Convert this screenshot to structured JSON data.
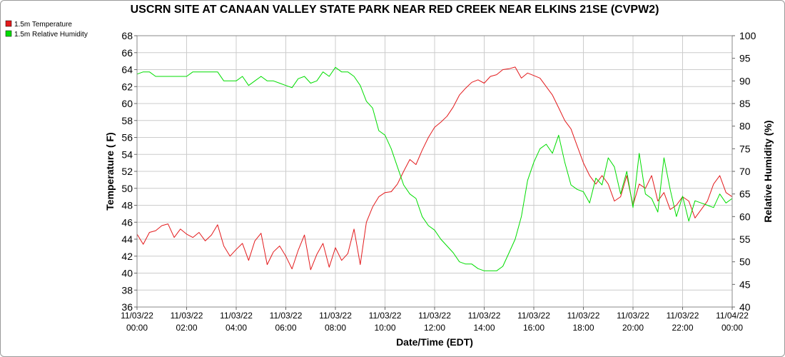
{
  "chart_data": {
    "type": "line",
    "title": "USCRN SITE AT CANAAN VALLEY STATE PARK NEAR RED CREEK NEAR ELKINS 21SE (CVPW2)",
    "xlabel": "Date/Time (EDT)",
    "ylabel_left": "Temperature ( F)",
    "ylabel_right": "Relative Humidity (%)",
    "xlim_hours": [
      0,
      24
    ],
    "ylim_left": [
      36,
      68
    ],
    "ylim_right": [
      40,
      100
    ],
    "yticks_left": [
      "36",
      "38",
      "40",
      "42",
      "44",
      "46",
      "48",
      "50",
      "52",
      "54",
      "56",
      "58",
      "60",
      "62",
      "64",
      "66",
      "68"
    ],
    "yticks_right": [
      "40",
      "45",
      "50",
      "55",
      "60",
      "65",
      "70",
      "75",
      "80",
      "85",
      "90",
      "95",
      "100"
    ],
    "xtick_labels": [
      {
        "date": "11/03/22",
        "time": "00:00"
      },
      {
        "date": "11/03/22",
        "time": "02:00"
      },
      {
        "date": "11/03/22",
        "time": "04:00"
      },
      {
        "date": "11/03/22",
        "time": "06:00"
      },
      {
        "date": "11/03/22",
        "time": "08:00"
      },
      {
        "date": "11/03/22",
        "time": "10:00"
      },
      {
        "date": "11/03/22",
        "time": "12:00"
      },
      {
        "date": "11/03/22",
        "time": "14:00"
      },
      {
        "date": "11/03/22",
        "time": "16:00"
      },
      {
        "date": "11/03/22",
        "time": "18:00"
      },
      {
        "date": "11/03/22",
        "time": "20:00"
      },
      {
        "date": "11/03/22",
        "time": "22:00"
      },
      {
        "date": "11/04/22",
        "time": "00:00"
      }
    ],
    "grid": true,
    "legend_position": "top-left",
    "series": [
      {
        "name": "1.5m Temperature",
        "axis": "left",
        "color": "#e31a1c",
        "x": [
          0,
          0.25,
          0.5,
          0.75,
          1,
          1.25,
          1.5,
          1.75,
          2,
          2.25,
          2.5,
          2.75,
          3,
          3.25,
          3.5,
          3.75,
          4,
          4.25,
          4.5,
          4.75,
          5,
          5.25,
          5.5,
          5.75,
          6,
          6.25,
          6.5,
          6.75,
          7,
          7.25,
          7.5,
          7.75,
          8,
          8.25,
          8.5,
          8.75,
          9,
          9.25,
          9.5,
          9.75,
          10,
          10.25,
          10.5,
          10.75,
          11,
          11.25,
          11.5,
          11.75,
          12,
          12.25,
          12.5,
          12.75,
          13,
          13.25,
          13.5,
          13.75,
          14,
          14.25,
          14.5,
          14.75,
          15,
          15.25,
          15.5,
          15.75,
          16,
          16.25,
          16.5,
          16.75,
          17,
          17.25,
          17.5,
          17.75,
          18,
          18.25,
          18.5,
          18.75,
          19,
          19.25,
          19.5,
          19.75,
          20,
          20.25,
          20.5,
          20.75,
          21,
          21.25,
          21.5,
          21.75,
          22,
          22.25,
          22.5,
          22.75,
          23,
          23.25,
          23.5,
          23.75,
          24
        ],
        "values": [
          44.6,
          43.4,
          44.8,
          45.0,
          45.6,
          45.8,
          44.2,
          45.2,
          44.6,
          44.2,
          44.8,
          43.8,
          44.5,
          45.7,
          43.2,
          42.0,
          42.8,
          43.5,
          41.5,
          43.8,
          44.7,
          41.0,
          42.5,
          43.2,
          42.0,
          40.5,
          42.7,
          44.5,
          40.4,
          42.2,
          43.5,
          40.7,
          43.0,
          41.5,
          42.3,
          45.2,
          41.0,
          46.0,
          47.8,
          49.0,
          49.5,
          49.6,
          50.5,
          52.0,
          53.4,
          52.8,
          54.5,
          56.0,
          57.2,
          57.8,
          58.5,
          59.6,
          61.0,
          61.8,
          62.5,
          62.8,
          62.4,
          63.2,
          63.4,
          64.0,
          64.1,
          64.3,
          63.0,
          63.6,
          63.3,
          63.0,
          62.0,
          61.0,
          59.5,
          58.0,
          57.0,
          55.0,
          53.0,
          51.5,
          50.5,
          51.5,
          50.5,
          48.5,
          49.0,
          51.5,
          48.0,
          50.5,
          50.0,
          51.5,
          48.5,
          49.5,
          47.5,
          48.0,
          49.0,
          48.5,
          46.5,
          47.5,
          48.5,
          50.5,
          51.5,
          49.5,
          49.0
        ]
      },
      {
        "name": "1.5m Relative Humidity",
        "axis": "right",
        "color": "#00dd00",
        "x": [
          0,
          0.25,
          0.5,
          0.75,
          1,
          1.25,
          1.5,
          1.75,
          2,
          2.25,
          2.5,
          2.75,
          3,
          3.25,
          3.5,
          3.75,
          4,
          4.25,
          4.5,
          4.75,
          5,
          5.25,
          5.5,
          5.75,
          6,
          6.25,
          6.5,
          6.75,
          7,
          7.25,
          7.5,
          7.75,
          8,
          8.25,
          8.5,
          8.75,
          9,
          9.25,
          9.5,
          9.75,
          10,
          10.25,
          10.5,
          10.75,
          11,
          11.25,
          11.5,
          11.75,
          12,
          12.25,
          12.5,
          12.75,
          13,
          13.25,
          13.5,
          13.75,
          14,
          14.25,
          14.5,
          14.75,
          15,
          15.25,
          15.5,
          15.75,
          16,
          16.25,
          16.5,
          16.75,
          17,
          17.25,
          17.5,
          17.75,
          18,
          18.25,
          18.5,
          18.75,
          19,
          19.25,
          19.5,
          19.75,
          20,
          20.25,
          20.5,
          20.75,
          21,
          21.25,
          21.5,
          21.75,
          22,
          22.25,
          22.5,
          22.75,
          23,
          23.25,
          23.5,
          23.75,
          24
        ],
        "values": [
          91.5,
          92.0,
          92.0,
          91.0,
          91.0,
          91.0,
          91.0,
          91.0,
          91.0,
          92.0,
          92.0,
          92.0,
          92.0,
          92.0,
          90.0,
          90.0,
          90.0,
          91.0,
          89.0,
          90.0,
          91.0,
          90.0,
          90.0,
          89.5,
          89.0,
          88.5,
          90.5,
          91.0,
          89.5,
          90.0,
          92.0,
          91.0,
          93.0,
          92.0,
          92.0,
          91.0,
          89.0,
          85.5,
          84.0,
          79.0,
          78.0,
          75.0,
          71.0,
          67.0,
          65.0,
          64.0,
          60.0,
          58.0,
          57.0,
          55.0,
          53.5,
          52.0,
          50.0,
          49.5,
          49.5,
          48.5,
          48.0,
          48.0,
          48.0,
          49.0,
          52.0,
          55.0,
          60.0,
          68.0,
          72.0,
          75.0,
          76.0,
          74.0,
          78.0,
          72.0,
          67.0,
          66.0,
          65.5,
          63.0,
          68.5,
          67.0,
          73.0,
          71.0,
          65.0,
          70.0,
          62.0,
          74.0,
          65.0,
          64.0,
          61.0,
          73.0,
          66.0,
          60.0,
          64.5,
          59.0,
          63.5,
          63.0,
          62.5,
          62.0,
          65.0,
          63.0,
          64.0
        ]
      }
    ]
  }
}
